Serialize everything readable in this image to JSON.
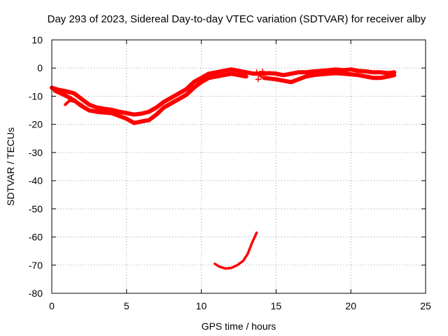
{
  "chart_data": {
    "type": "line",
    "title": "Day 293 of 2023, Sidereal Day-to-day VTEC variation (SDTVAR) for receiver alby",
    "xlabel": "GPS time / hours",
    "ylabel": "SDTVAR / TECUs",
    "xlim": [
      0,
      25
    ],
    "ylim": [
      -80,
      10
    ],
    "xticks": [
      0,
      5,
      10,
      15,
      20,
      25
    ],
    "yticks": [
      -80,
      -70,
      -60,
      -50,
      -40,
      -30,
      -20,
      -10,
      0,
      10
    ],
    "grid": true,
    "legend": "none",
    "series_color": "#ff0000",
    "series": [
      {
        "name": "main-band-upper",
        "values": [
          [
            0,
            -7
          ],
          [
            0.5,
            -7.8
          ],
          [
            1,
            -8.3
          ],
          [
            1.5,
            -9
          ],
          [
            2,
            -11
          ],
          [
            2.5,
            -13
          ],
          [
            3,
            -14
          ],
          [
            3.5,
            -14.5
          ],
          [
            4,
            -14.8
          ],
          [
            4.5,
            -15.5
          ],
          [
            5,
            -16
          ],
          [
            5.5,
            -16.5
          ],
          [
            6,
            -16.2
          ],
          [
            6.5,
            -15.5
          ],
          [
            7,
            -14
          ],
          [
            7.5,
            -12
          ],
          [
            8,
            -10.5
          ],
          [
            8.5,
            -9
          ],
          [
            9,
            -7.5
          ],
          [
            9.5,
            -5
          ],
          [
            10,
            -3.5
          ],
          [
            10.5,
            -2
          ],
          [
            11,
            -1.5
          ],
          [
            11.5,
            -1
          ],
          [
            12,
            -0.5
          ],
          [
            12.5,
            -1
          ],
          [
            13,
            -1.5
          ]
        ]
      },
      {
        "name": "main-band-lower",
        "values": [
          [
            0.2,
            -8
          ],
          [
            1,
            -10
          ],
          [
            1.5,
            -11.5
          ],
          [
            2,
            -13.5
          ],
          [
            2.5,
            -15
          ],
          [
            3,
            -15.5
          ],
          [
            3.5,
            -15.8
          ],
          [
            4,
            -16
          ],
          [
            4.5,
            -17
          ],
          [
            5,
            -18
          ],
          [
            5.5,
            -19.5
          ],
          [
            6,
            -19
          ],
          [
            6.5,
            -18.5
          ],
          [
            7,
            -16.5
          ],
          [
            7.5,
            -14
          ],
          [
            8,
            -12.5
          ],
          [
            8.5,
            -11
          ],
          [
            9,
            -9.5
          ],
          [
            9.5,
            -7
          ],
          [
            10,
            -5
          ],
          [
            10.5,
            -3.5
          ],
          [
            11,
            -3
          ],
          [
            11.5,
            -2.5
          ],
          [
            12,
            -2
          ],
          [
            12.5,
            -2.5
          ],
          [
            13,
            -3
          ]
        ]
      },
      {
        "name": "early-branch",
        "values": [
          [
            0.9,
            -13
          ],
          [
            1.2,
            -11.5
          ],
          [
            1.6,
            -12
          ],
          [
            2,
            -13
          ],
          [
            2.3,
            -14.5
          ]
        ]
      },
      {
        "name": "right-band-upper",
        "values": [
          [
            13,
            -1.5
          ],
          [
            13.5,
            -2
          ],
          [
            14,
            -2
          ],
          [
            14.5,
            -1.8
          ],
          [
            15,
            -2
          ],
          [
            15.5,
            -2.5
          ],
          [
            16,
            -2
          ],
          [
            16.5,
            -1.5
          ],
          [
            17,
            -1.5
          ],
          [
            17.5,
            -1.2
          ],
          [
            18,
            -1
          ],
          [
            18.5,
            -0.8
          ],
          [
            19,
            -0.5
          ],
          [
            19.5,
            -0.8
          ],
          [
            20,
            -0.5
          ],
          [
            20.5,
            -1
          ],
          [
            21,
            -1.2
          ],
          [
            21.5,
            -1.5
          ],
          [
            22,
            -1.5
          ],
          [
            22.5,
            -1.8
          ],
          [
            22.9,
            -1.5
          ]
        ]
      },
      {
        "name": "right-band-lower",
        "values": [
          [
            14.2,
            -3.5
          ],
          [
            15,
            -4
          ],
          [
            15.5,
            -4.5
          ],
          [
            16,
            -5
          ],
          [
            16.5,
            -4
          ],
          [
            17,
            -3
          ],
          [
            17.5,
            -2.5
          ],
          [
            18,
            -2.2
          ],
          [
            18.5,
            -2
          ],
          [
            19,
            -1.8
          ],
          [
            19.5,
            -2
          ],
          [
            20,
            -2.2
          ],
          [
            20.5,
            -2.5
          ],
          [
            21,
            -3
          ],
          [
            21.5,
            -3.5
          ],
          [
            22,
            -3.5
          ],
          [
            22.5,
            -3
          ],
          [
            22.9,
            -2.5
          ]
        ]
      },
      {
        "name": "lower-arc",
        "values": [
          [
            10.9,
            -69.5
          ],
          [
            11.2,
            -70.5
          ],
          [
            11.6,
            -71.2
          ],
          [
            12,
            -71
          ],
          [
            12.4,
            -70
          ],
          [
            12.8,
            -68.5
          ],
          [
            13.1,
            -66
          ],
          [
            13.4,
            -62
          ],
          [
            13.7,
            -58.5
          ]
        ]
      }
    ],
    "markers": [
      {
        "x": 13.7,
        "y": -1.5
      },
      {
        "x": 13.9,
        "y": -2
      },
      {
        "x": 14,
        "y": -3
      },
      {
        "x": 13.8,
        "y": -4
      },
      {
        "x": 14.1,
        "y": -1.2
      }
    ]
  }
}
